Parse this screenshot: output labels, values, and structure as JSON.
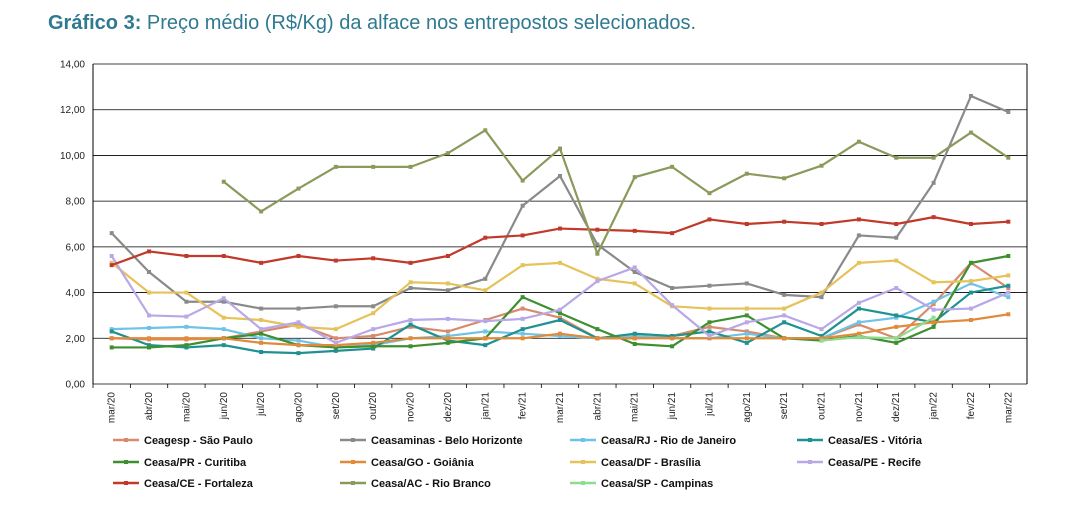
{
  "title": {
    "lead": "Gráfico 3:",
    "rest": " Preço médio (R$/Kg) da alface nos entrepostos selecionados."
  },
  "chart_data": {
    "type": "line",
    "title": "Gráfico 3: Preço médio (R$/Kg) da alface nos entrepostos selecionados.",
    "ylim": [
      0,
      14
    ],
    "y_ticks": [
      "0,00",
      "2,00",
      "4,00",
      "6,00",
      "8,00",
      "10,00",
      "12,00",
      "14,00"
    ],
    "y_tick_values": [
      0,
      2,
      4,
      6,
      8,
      10,
      12,
      14
    ],
    "grid": true,
    "legend_position": "bottom",
    "categories": [
      "mar/20",
      "abr/20",
      "mai/20",
      "jun/20",
      "jul/20",
      "ago/20",
      "set/20",
      "out/20",
      "nov/20",
      "dez/20",
      "jan/21",
      "fev/21",
      "mar/21",
      "abr/21",
      "mai/21",
      "jun/21",
      "jul/21",
      "ago/21",
      "set/21",
      "out/21",
      "nov/21",
      "dez/21",
      "jan/22",
      "fev/22",
      "mar/22"
    ],
    "series": [
      {
        "name": "Ceagesp - São Paulo",
        "color": "#d98a6c",
        "values": [
          2.0,
          1.95,
          1.95,
          2.0,
          2.3,
          2.6,
          2.0,
          2.1,
          2.5,
          2.3,
          2.8,
          3.3,
          2.9,
          2.0,
          2.0,
          2.1,
          2.5,
          2.3,
          2.0,
          2.0,
          2.6,
          2.0,
          3.5,
          5.3,
          4.2
        ]
      },
      {
        "name": "Ceasaminas - Belo Horizonte",
        "color": "#8a8a8a",
        "values": [
          6.6,
          4.9,
          3.6,
          3.6,
          3.3,
          3.3,
          3.4,
          3.4,
          4.2,
          4.1,
          4.6,
          7.8,
          9.1,
          6.1,
          4.9,
          4.2,
          4.3,
          4.4,
          3.9,
          3.8,
          6.5,
          6.4,
          8.8,
          12.6,
          11.9
        ]
      },
      {
        "name": "Ceasa/RJ - Rio de Janeiro",
        "color": "#6fc3e6",
        "values": [
          2.4,
          2.45,
          2.5,
          2.4,
          2.0,
          1.9,
          1.6,
          1.7,
          2.0,
          2.1,
          2.3,
          2.2,
          2.1,
          2.0,
          2.1,
          2.0,
          2.0,
          2.2,
          2.0,
          2.0,
          2.7,
          2.9,
          3.6,
          4.4,
          3.8
        ]
      },
      {
        "name": "Ceasa/ES - Vitória",
        "color": "#1f9191",
        "values": [
          2.3,
          1.7,
          1.6,
          1.7,
          1.4,
          1.35,
          1.45,
          1.55,
          2.6,
          1.9,
          1.7,
          2.4,
          2.8,
          2.0,
          2.2,
          2.1,
          2.3,
          1.8,
          2.7,
          2.1,
          3.3,
          3.0,
          2.7,
          4.0,
          4.3
        ]
      },
      {
        "name": "Ceasa/PR - Curitiba",
        "color": "#3d8f2f",
        "values": [
          1.6,
          1.6,
          1.7,
          2.0,
          2.2,
          1.7,
          1.6,
          1.65,
          1.65,
          1.8,
          2.0,
          3.8,
          3.1,
          2.4,
          1.75,
          1.65,
          2.7,
          3.0,
          2.0,
          1.9,
          2.1,
          1.8,
          2.5,
          5.3,
          5.6
        ]
      },
      {
        "name": "Ceasa/GO - Goiânia",
        "color": "#e08a3a",
        "values": [
          2.0,
          2.0,
          2.0,
          2.0,
          1.8,
          1.7,
          1.7,
          1.8,
          2.0,
          2.0,
          2.0,
          2.0,
          2.2,
          2.0,
          2.0,
          2.0,
          2.0,
          2.0,
          2.0,
          2.0,
          2.2,
          2.5,
          2.7,
          2.8,
          3.05
        ]
      },
      {
        "name": "Ceasa/DF - Brasília",
        "color": "#e6c25a",
        "values": [
          5.3,
          4.0,
          4.0,
          2.9,
          2.8,
          2.5,
          2.4,
          3.1,
          4.45,
          4.4,
          4.1,
          5.2,
          5.3,
          4.6,
          4.4,
          3.4,
          3.3,
          3.3,
          3.3,
          4.0,
          5.3,
          5.4,
          4.45,
          4.5,
          4.75
        ]
      },
      {
        "name": "Ceasa/PE - Recife",
        "color": "#b9a8e6",
        "values": [
          5.6,
          3.0,
          2.95,
          3.75,
          2.4,
          2.7,
          1.8,
          2.4,
          2.8,
          2.85,
          2.75,
          2.85,
          3.25,
          4.5,
          5.1,
          3.45,
          2.1,
          2.7,
          3.0,
          2.4,
          3.55,
          4.2,
          3.25,
          3.3,
          4.0
        ]
      },
      {
        "name": "Ceasa/CE - Fortaleza",
        "color": "#c0392b",
        "values": [
          5.2,
          5.8,
          5.6,
          5.6,
          5.3,
          5.6,
          5.4,
          5.5,
          5.3,
          5.6,
          6.4,
          6.5,
          6.8,
          6.75,
          6.7,
          6.6,
          7.2,
          7.0,
          7.1,
          7.0,
          7.2,
          7.0,
          7.3,
          7.0,
          7.1
        ]
      },
      {
        "name": "Ceasa/AC - Rio Branco",
        "color": "#8a9a5b",
        "values": [
          null,
          null,
          null,
          8.85,
          7.55,
          8.55,
          9.5,
          9.5,
          9.5,
          10.1,
          11.1,
          8.9,
          10.3,
          5.7,
          9.05,
          9.5,
          8.35,
          9.2,
          9.0,
          9.55,
          10.6,
          9.9,
          9.9,
          11.0,
          9.9
        ]
      },
      {
        "name": "Ceasa/SP - Campinas",
        "color": "#8fdc8f",
        "values": [
          null,
          null,
          null,
          null,
          null,
          null,
          null,
          null,
          null,
          null,
          null,
          null,
          null,
          null,
          null,
          null,
          null,
          null,
          null,
          1.9,
          2.05,
          2.0,
          2.9,
          null,
          null
        ]
      }
    ]
  }
}
